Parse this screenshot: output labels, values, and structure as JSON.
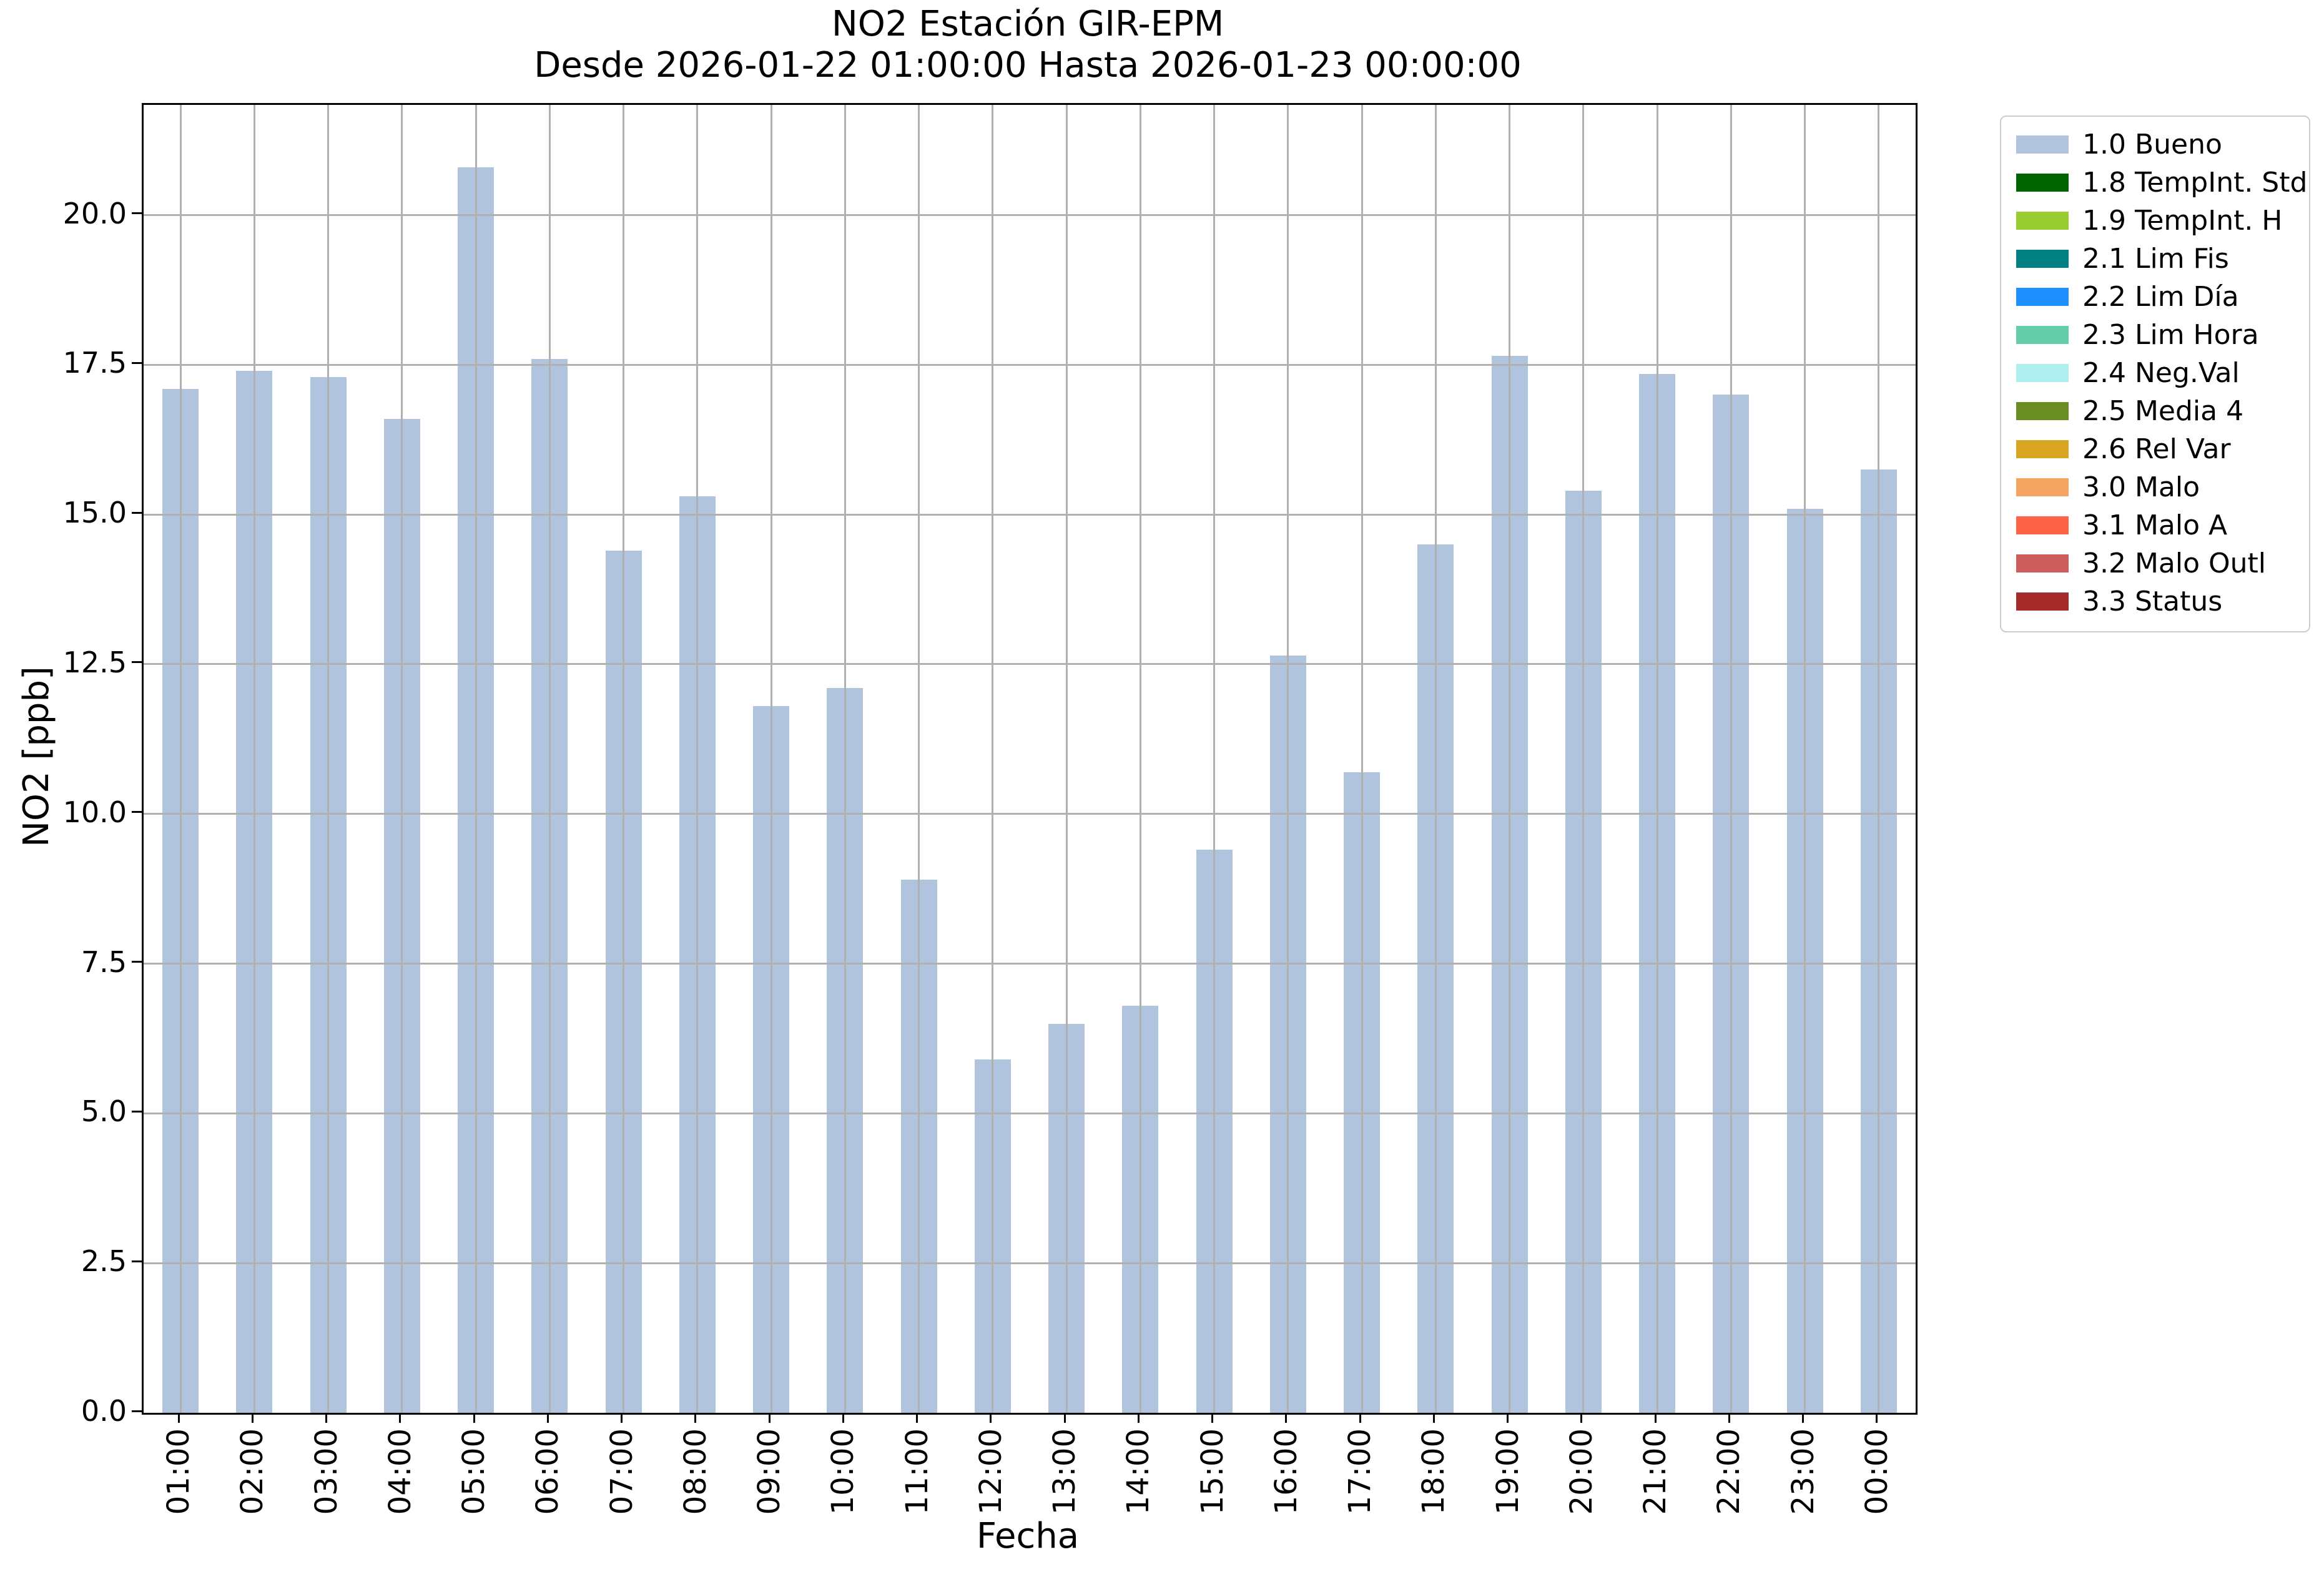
{
  "chart_data": {
    "type": "bar",
    "title": "NO2 Estación GIR-EPM",
    "subtitle": "Desde 2026-01-22 01:00:00 Hasta 2026-01-23 00:00:00",
    "xlabel": "Fecha",
    "ylabel": "NO2 [ppb]",
    "series_name": "1.0 Bueno",
    "categories": [
      "01:00",
      "02:00",
      "03:00",
      "04:00",
      "05:00",
      "06:00",
      "07:00",
      "08:00",
      "09:00",
      "10:00",
      "11:00",
      "12:00",
      "13:00",
      "14:00",
      "15:00",
      "16:00",
      "17:00",
      "18:00",
      "19:00",
      "20:00",
      "21:00",
      "22:00",
      "23:00",
      "00:00"
    ],
    "values": [
      17.1,
      17.4,
      17.3,
      16.6,
      20.8,
      17.6,
      14.4,
      15.3,
      11.8,
      12.1,
      8.9,
      5.9,
      6.5,
      6.8,
      9.4,
      12.65,
      10.7,
      14.5,
      17.65,
      15.4,
      17.35,
      17.0,
      15.1,
      15.75
    ],
    "ylim": [
      0,
      21.84
    ],
    "yticks": [
      0,
      2.5,
      5,
      7.5,
      10,
      12.5,
      15,
      17.5,
      20
    ],
    "ytick_labels": [
      "0.0",
      "2.5",
      "5.0",
      "7.5",
      "10.0",
      "12.5",
      "15.0",
      "17.5",
      "20.0"
    ],
    "xtick_rotation_deg": 90,
    "grid": true,
    "grid_on_top": true,
    "legend_position": "outside-upper-right",
    "bar_color": "#b0c4de",
    "legend": [
      {
        "label": "1.0 Bueno",
        "color": "#b0c4de"
      },
      {
        "label": "1.8 TempInt. Std",
        "color": "#006400"
      },
      {
        "label": "1.9 TempInt. H",
        "color": "#9acd32"
      },
      {
        "label": "2.1 Lim Fis",
        "color": "#008080"
      },
      {
        "label": "2.2 Lim Día",
        "color": "#1e90ff"
      },
      {
        "label": "2.3 Lim Hora",
        "color": "#66cdaa"
      },
      {
        "label": "2.4 Neg.Val",
        "color": "#afeeee"
      },
      {
        "label": "2.5 Media 4",
        "color": "#6b8e23"
      },
      {
        "label": "2.6 Rel Var",
        "color": "#daa520"
      },
      {
        "label": "3.0 Malo",
        "color": "#f4a460"
      },
      {
        "label": "3.1 Malo A",
        "color": "#ff6347"
      },
      {
        "label": "3.2 Malo Outl",
        "color": "#cd5c5c"
      },
      {
        "label": "3.3 Status",
        "color": "#a52a2a"
      }
    ]
  },
  "colors": {
    "background": "#ffffff",
    "grid": "#b0b0b0",
    "axis": "#000000",
    "text": "#000000",
    "legend_border": "#cccccc"
  }
}
